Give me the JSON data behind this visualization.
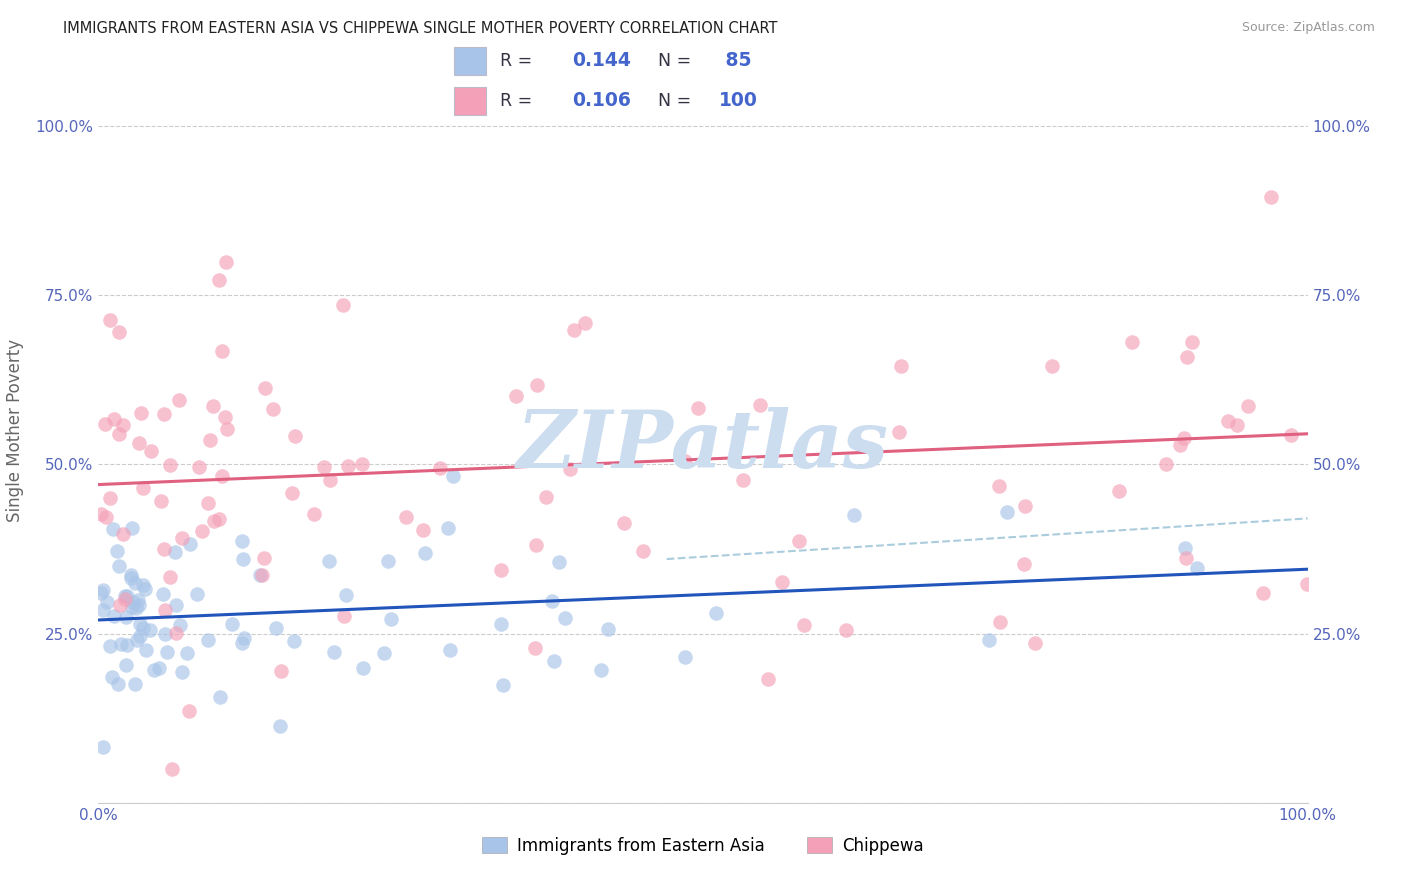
{
  "title": "IMMIGRANTS FROM EASTERN ASIA VS CHIPPEWA SINGLE MOTHER POVERTY CORRELATION CHART",
  "source": "Source: ZipAtlas.com",
  "ylabel": "Single Mother Poverty",
  "legend_label_blue": "Immigrants from Eastern Asia",
  "legend_label_pink": "Chippewa",
  "R_blue": 0.144,
  "N_blue": 85,
  "R_pink": 0.106,
  "N_pink": 100,
  "blue_color": "#a8c4e8",
  "pink_color": "#f4a0b8",
  "blue_line_color": "#2255bb",
  "pink_line_color": "#e06080",
  "dashed_line_color": "#aaccdd",
  "watermark_color": "#ccddf0",
  "background_color": "#ffffff",
  "grid_color": "#cccccc",
  "tick_color": "#5566bb",
  "ymin": 0,
  "ymax": 110,
  "xmin": 0,
  "xmax": 100,
  "blue_intercept": 27.0,
  "blue_slope": 0.075,
  "pink_intercept": 47.0,
  "pink_slope": 0.075,
  "dashed_x_start": 47,
  "dashed_x_end": 100,
  "dashed_y_start": 36,
  "dashed_y_end": 42
}
